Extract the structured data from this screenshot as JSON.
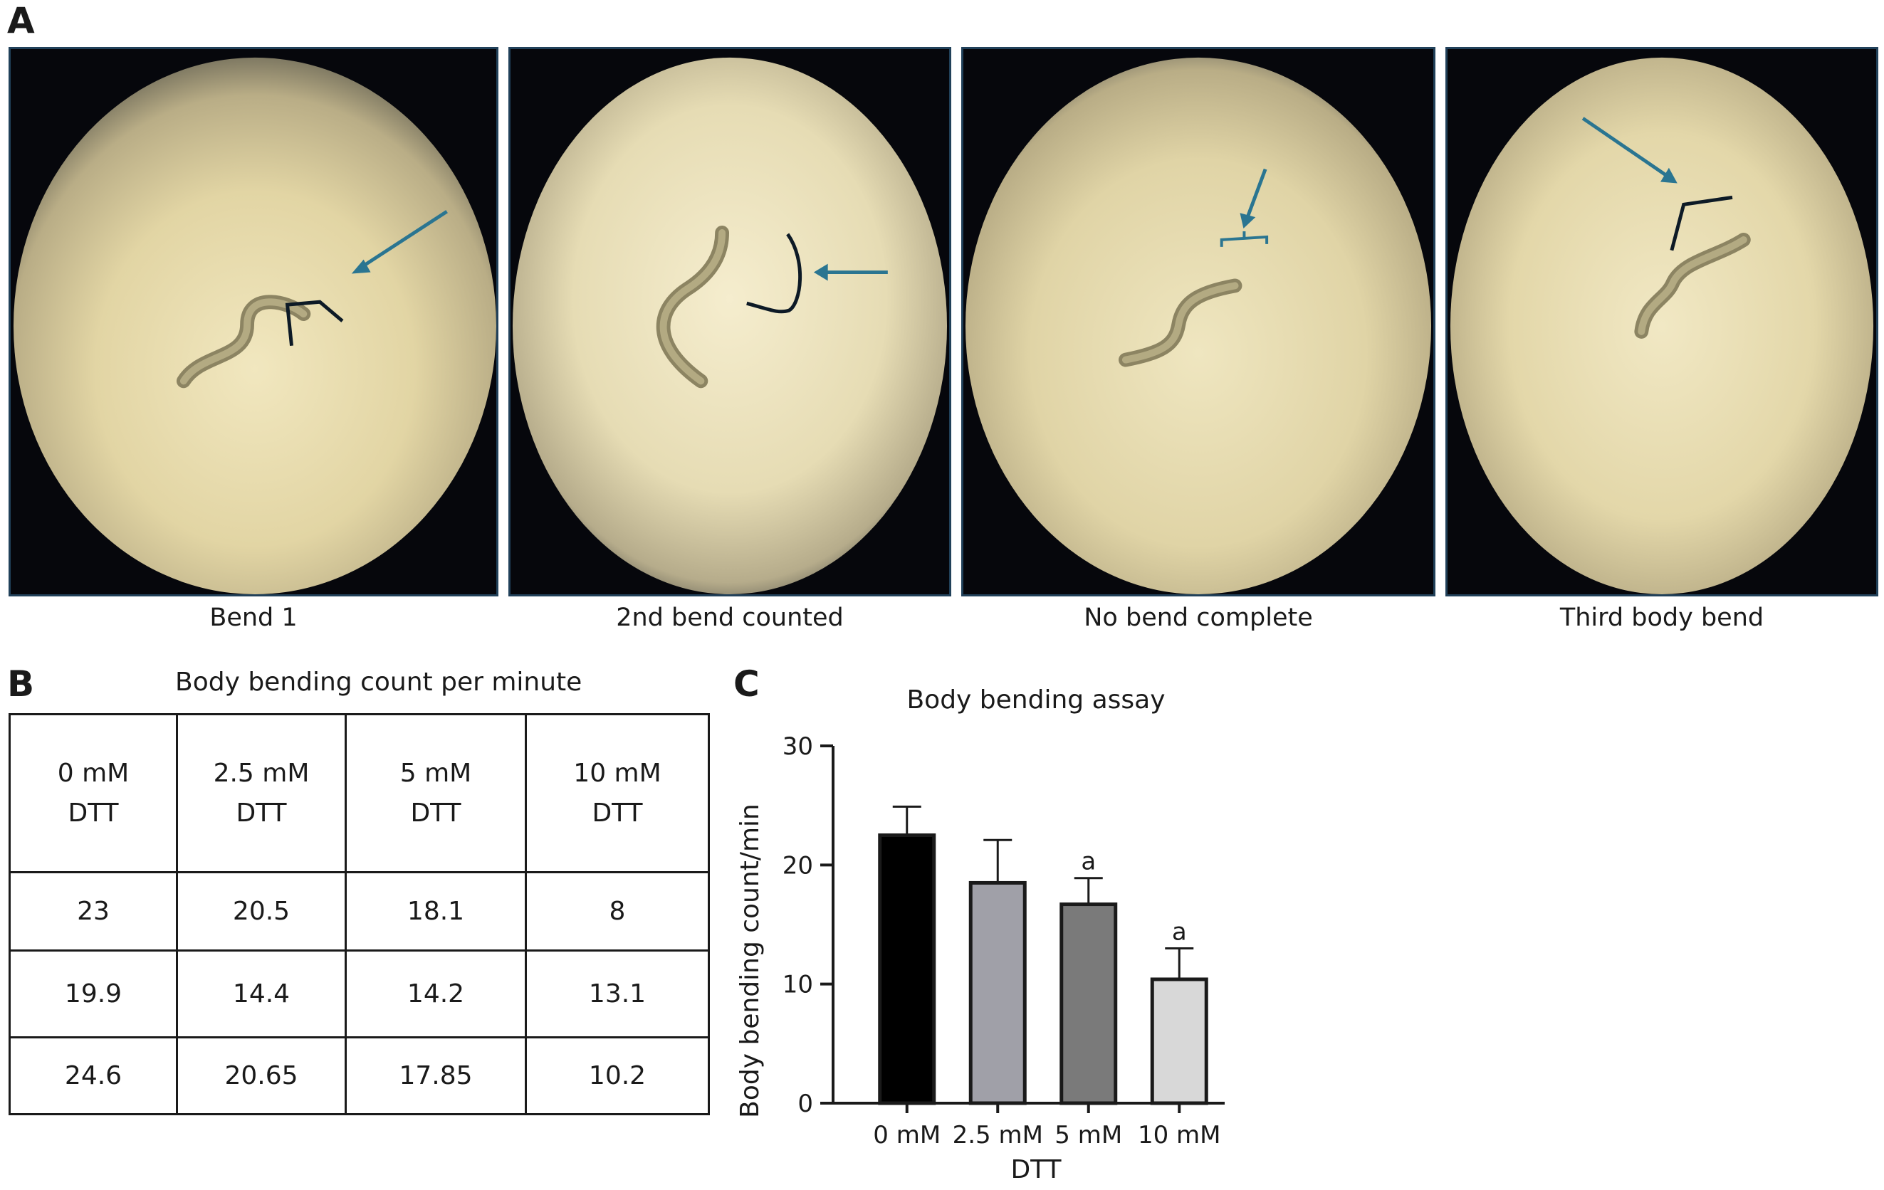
{
  "panels": {
    "a": "A",
    "b": "B",
    "c": "C"
  },
  "images": [
    {
      "caption": "Bend 1"
    },
    {
      "caption": "2nd bend counted"
    },
    {
      "caption": "No bend complete"
    },
    {
      "caption": "Third body bend"
    }
  ],
  "table": {
    "title": "Body bending count per minute",
    "headers": [
      [
        "0 mM",
        "DTT"
      ],
      [
        "2.5 mM",
        "DTT"
      ],
      [
        "5 mM",
        "DTT"
      ],
      [
        "10 mM",
        "DTT"
      ]
    ],
    "rows": [
      [
        "23",
        "20.5",
        "18.1",
        "8"
      ],
      [
        "19.9",
        "14.4",
        "14.2",
        "13.1"
      ],
      [
        "24.6",
        "20.65",
        "17.85",
        "10.2"
      ]
    ]
  },
  "chart_data": {
    "type": "bar",
    "title": "Body bending assay",
    "ylabel": "Body bending count/min",
    "xlabel": "DTT",
    "categories": [
      "0 mM",
      "2.5 mM",
      "5 mM",
      "10 mM"
    ],
    "values": [
      22.5,
      18.5,
      16.7,
      10.4
    ],
    "errors": [
      2.4,
      3.6,
      2.2,
      2.6
    ],
    "annotations": [
      "",
      "",
      "a",
      "a"
    ],
    "colors": [
      "#000000",
      "#a0a0a8",
      "#7a7a7a",
      "#d8d8d8"
    ],
    "ylim": [
      0,
      30
    ],
    "yticks": [
      "0",
      "10",
      "20",
      "30"
    ],
    "grid": false
  }
}
